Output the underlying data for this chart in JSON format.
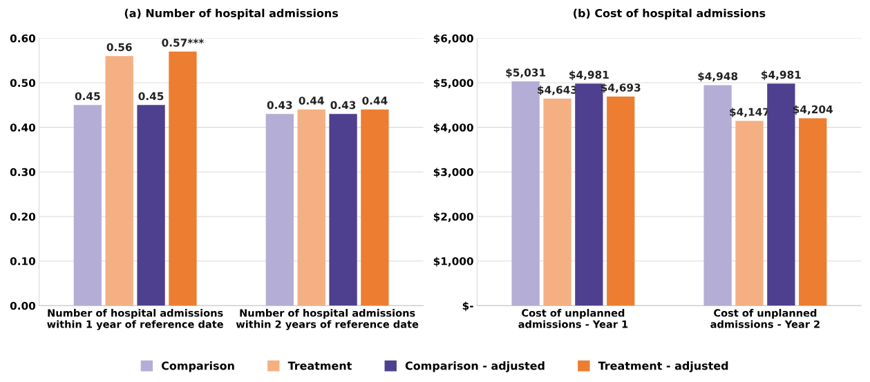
{
  "chart_data": [
    {
      "type": "bar",
      "title": "(a) Number of hospital admissions",
      "categories": [
        "Number of hospital admissions\nwithin 1 year of reference date",
        "Number of hospital admissions\nwithin 2 years of reference date"
      ],
      "series": [
        {
          "name": "Comparison",
          "color": "#b4aed6",
          "values": [
            0.45,
            0.43
          ],
          "value_labels": [
            "0.45",
            "0.43"
          ]
        },
        {
          "name": "Treatment",
          "color": "#f4b083",
          "values": [
            0.56,
            0.44
          ],
          "value_labels": [
            "0.56",
            "0.44"
          ]
        },
        {
          "name": "Comparison - adjusted",
          "color": "#4f3f8f",
          "values": [
            0.45,
            0.43
          ],
          "value_labels": [
            "0.45",
            "0.43"
          ]
        },
        {
          "name": "Treatment - adjusted",
          "color": "#ed7d31",
          "values": [
            0.57,
            0.44
          ],
          "value_labels": [
            "0.57***",
            "0.44"
          ]
        }
      ],
      "ylim": [
        0,
        0.6
      ],
      "yticks": [
        {
          "value": 0,
          "label": "0.00"
        },
        {
          "value": 0.1,
          "label": "0.10"
        },
        {
          "value": 0.2,
          "label": "0.20"
        },
        {
          "value": 0.3,
          "label": "0.30"
        },
        {
          "value": 0.4,
          "label": "0.40"
        },
        {
          "value": 0.5,
          "label": "0.50"
        },
        {
          "value": 0.6,
          "label": "0.60"
        }
      ],
      "grid": "y",
      "legend": "bottom"
    },
    {
      "type": "bar",
      "title": "(b) Cost of hospital admissions",
      "categories": [
        "Cost of unplanned\nadmissions - Year 1",
        "Cost of unplanned\nadmissions - Year 2"
      ],
      "series": [
        {
          "name": "Comparison",
          "color": "#b4aed6",
          "values": [
            5031,
            4948
          ],
          "value_labels": [
            "$5,031",
            "$4,948"
          ]
        },
        {
          "name": "Treatment",
          "color": "#f4b083",
          "values": [
            4643,
            4147
          ],
          "value_labels": [
            "$4,643",
            "$4,147"
          ]
        },
        {
          "name": "Comparison - adjusted",
          "color": "#4f3f8f",
          "values": [
            4981,
            4981
          ],
          "value_labels": [
            "$4,981",
            "$4,981"
          ]
        },
        {
          "name": "Treatment - adjusted",
          "color": "#ed7d31",
          "values": [
            4693,
            4204
          ],
          "value_labels": [
            "$4,693",
            "$4,204"
          ]
        }
      ],
      "ylim": [
        0,
        6000
      ],
      "yticks": [
        {
          "value": 0,
          "label": "$-"
        },
        {
          "value": 1000,
          "label": "$1,000"
        },
        {
          "value": 2000,
          "label": "$2,000"
        },
        {
          "value": 3000,
          "label": "$3,000"
        },
        {
          "value": 4000,
          "label": "$4,000"
        },
        {
          "value": 5000,
          "label": "$5,000"
        },
        {
          "value": 6000,
          "label": "$6,000"
        }
      ],
      "grid": "y",
      "legend": "bottom"
    }
  ]
}
